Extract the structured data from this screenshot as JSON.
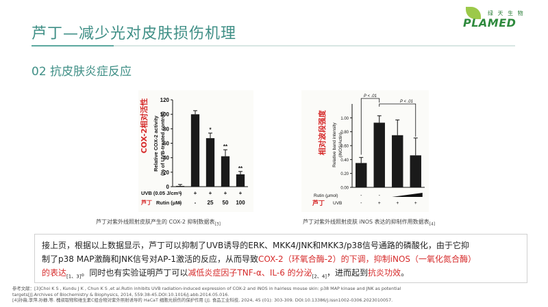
{
  "header": {
    "title": "芦丁—减少光对皮肤损伤机理",
    "subtitle": "02 抗皮肤炎症反应",
    "logo_text": "PLAMED",
    "logo_cn": "绿 天 生 物"
  },
  "figure1": {
    "caption_main": "芦丁对紫外线照射皮肤产生的 COX-2 抑制数据表",
    "caption_ref": "[3]",
    "overlay_label": "COX-2相对活性",
    "rutin_cn_label": "芦丁",
    "chart_data": {
      "type": "bar",
      "ylabel": "Relative COX-2 activity (% of UVB-treated control)",
      "ylim": [
        0,
        120
      ],
      "yticks": [
        "0",
        "20",
        "40",
        "60",
        "80",
        "100",
        "120"
      ],
      "row_labels": [
        "UVB (0.05 J/cm²)",
        "Rutin (μM)"
      ],
      "uvb_row": [
        "-",
        "+",
        "+",
        "+",
        "+"
      ],
      "rutin_row": [
        "-",
        "-",
        "25",
        "50",
        "100"
      ],
      "values": [
        1,
        100,
        67,
        42,
        17
      ],
      "errors": [
        2,
        5,
        7,
        9,
        4
      ],
      "significance": [
        "",
        "",
        "*",
        "**",
        "**"
      ]
    }
  },
  "figure2": {
    "caption_main": "芦丁对紫外线照射皮肤 iNOS 表达的抑制作用数据表",
    "caption_ref": "[4]",
    "overlay_label": "相对波段强度",
    "rutin_cn_label": "芦丁",
    "chart_data": {
      "type": "bar",
      "ylabel": "Relative band intensity (iNOS/Actin)",
      "ylim": [
        0,
        1.2
      ],
      "yticks": [
        "0.00",
        "0.20",
        "0.40",
        "0.60",
        "0.80",
        "1.00"
      ],
      "row_labels": [
        "Rutin (μmol)",
        "UVB"
      ],
      "rutin_row": [
        "-",
        "-",
        "",
        ""
      ],
      "uvb_row": [
        "-",
        "+",
        "+",
        "+"
      ],
      "values": [
        0.35,
        0.93,
        0.75,
        0.46
      ],
      "errors": [
        0.08,
        0.1,
        0.22,
        0.25
      ],
      "brackets": [
        "P < .01",
        "P < .01"
      ]
    }
  },
  "body_text": {
    "line1": "接上页，根据以上数据显示，芦丁可以抑制了UVB诱导的ERK、MKK4/JNK和MKK3/p38信号通路的磷酸化，由于它抑",
    "line2a": "制了p38 MAP激酶和JNK信号对AP-1激活的反应，从而导致",
    "line2b": "COX-2（环氧合酶-2）的下调，抑制iNOS（一氧化氮合酶）",
    "line3a": "的表达",
    "line3a_ref": "[1、3]",
    "line3b": "。同时也有实验证明芦丁可以",
    "line3c": "减低炎症因子TNF-α、IL-6 的分泌",
    "line3c_ref": "[2、4]",
    "line3d": "，进而起到",
    "line3e": "抗炎功效",
    "line3f": "。"
  },
  "references": {
    "line1": "参考文献：[3]Choi K S , Kundu J K , Chun K S ,et al.Rutin inhibits UVB radiation-induced expression of COX-2 and iNOS in hairless mouse skin: p38 MAP kinase and JNK as potential",
    "line2": "targets[J].Archives of Biochemistry & Biophysics, 2014, 559:38-45.DOI:10.1016/j.abb.2014.05.016.",
    "line3": "[4]孙薇,李萍,孙静,等. 槐叔取物和维生素C组合物对紫外照射诱导的 HaCaT 细胞光损伤的保护作用 [J]. 食品工业科技, 2024, 45 (01): 303-309. DOI:10.13386/j.issn1002-0306.2023010057."
  },
  "colors": {
    "accent": "#3f8f86",
    "highlight": "#d62b2b",
    "bar": "#1a1a1a"
  }
}
